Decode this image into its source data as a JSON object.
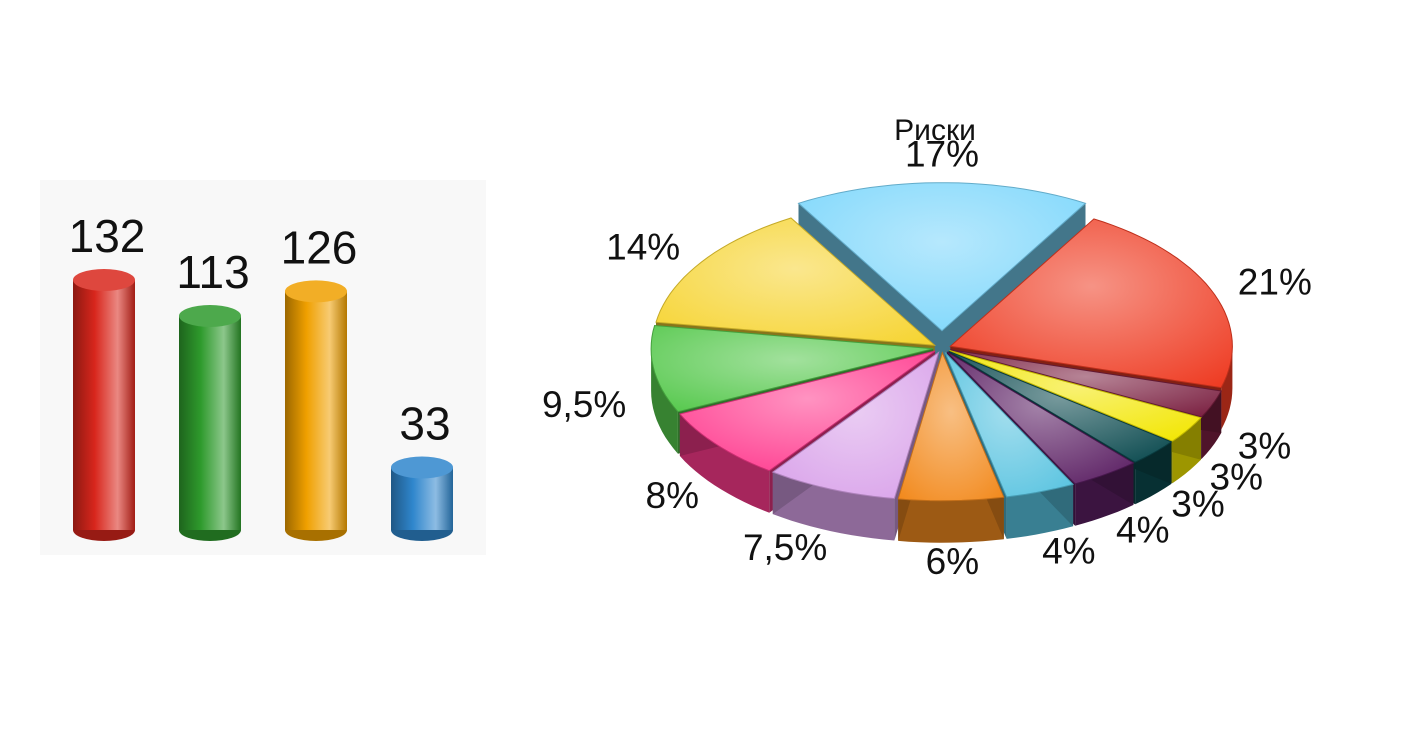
{
  "chart_data": [
    {
      "type": "bar",
      "categories": [
        "",
        "",
        "",
        ""
      ],
      "values": [
        132,
        113,
        126,
        33
      ],
      "value_labels": [
        "132",
        "113",
        "126",
        "33"
      ],
      "colors": [
        "#d8261c",
        "#2e9a2c",
        "#f0a000",
        "#2f86cc"
      ],
      "ylim": [
        0,
        132
      ],
      "grid": false,
      "legend": "none",
      "style": "3d-cylinder"
    },
    {
      "type": "pie",
      "title": "Риски",
      "values": [
        17,
        21,
        3,
        3,
        3,
        4,
        4,
        6,
        7.5,
        8,
        9.5,
        14
      ],
      "labels": [
        "17%",
        "21%",
        "3%",
        "3%",
        "3%",
        "4%",
        "4%",
        "6%",
        "7,5%",
        "8%",
        "9,5%",
        "14%"
      ],
      "colors": [
        "#7ad6fb",
        "#ee3b22",
        "#7a1f40",
        "#f2e600",
        "#0b4a4f",
        "#5a1e62",
        "#58c3e0",
        "#f28a1e",
        "#d9a2ea",
        "#ff3a8e",
        "#55c84c",
        "#f6d431"
      ],
      "exploded": [
        0
      ],
      "legend": "none",
      "style": "3d-exploded"
    }
  ]
}
